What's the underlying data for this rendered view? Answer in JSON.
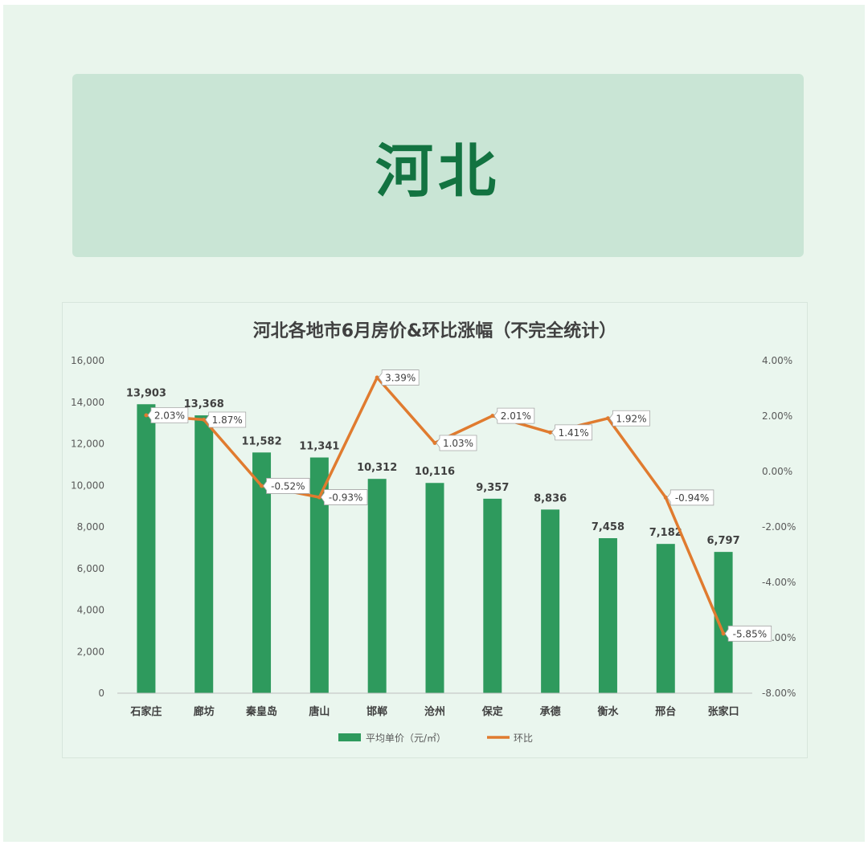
{
  "banner": {
    "title": "河北"
  },
  "chart_data": {
    "type": "bar+line",
    "title": "河北各地市6月房价&环比涨幅（不完全统计）",
    "categories": [
      "石家庄",
      "廊坊",
      "秦皇岛",
      "唐山",
      "邯郸",
      "沧州",
      "保定",
      "承德",
      "衡水",
      "邢台",
      "张家口"
    ],
    "series": [
      {
        "name": "平均单价（元/㎡）",
        "type": "bar",
        "axis": "left",
        "color": "#2e9a5d",
        "values": [
          13903,
          13368,
          11582,
          11341,
          10312,
          10116,
          9357,
          8836,
          7458,
          7182,
          6797
        ],
        "labels": [
          "13,903",
          "13,368",
          "11,582",
          "11,341",
          "10,312",
          "10,116",
          "9,357",
          "8,836",
          "7,458",
          "7,182",
          "6,797"
        ]
      },
      {
        "name": "环比",
        "type": "line",
        "axis": "right",
        "color": "#e07b2f",
        "values": [
          2.03,
          1.87,
          -0.52,
          -0.93,
          3.39,
          1.03,
          2.01,
          1.41,
          1.92,
          -0.94,
          -5.85
        ],
        "labels": [
          "2.03%",
          "1.87%",
          "-0.52%",
          "-0.93%",
          "3.39%",
          "1.03%",
          "2.01%",
          "1.41%",
          "1.92%",
          "-0.94%",
          "-5.85%"
        ]
      }
    ],
    "left_axis": {
      "min": 0,
      "max": 16000,
      "ticks": [
        0,
        2000,
        4000,
        6000,
        8000,
        10000,
        12000,
        14000,
        16000
      ],
      "tick_labels": [
        "0",
        "2,000",
        "4,000",
        "6,000",
        "8,000",
        "10,000",
        "12,000",
        "14,000",
        "16,000"
      ]
    },
    "right_axis": {
      "min": -8,
      "max": 4,
      "ticks": [
        -8,
        -6,
        -4,
        -2,
        0,
        2,
        4
      ],
      "tick_labels": [
        "-8.00%",
        "-6.00%",
        "-4.00%",
        "-2.00%",
        "0.00%",
        "2.00%",
        "4.00%"
      ]
    },
    "grid": false,
    "legend": "bottom"
  }
}
